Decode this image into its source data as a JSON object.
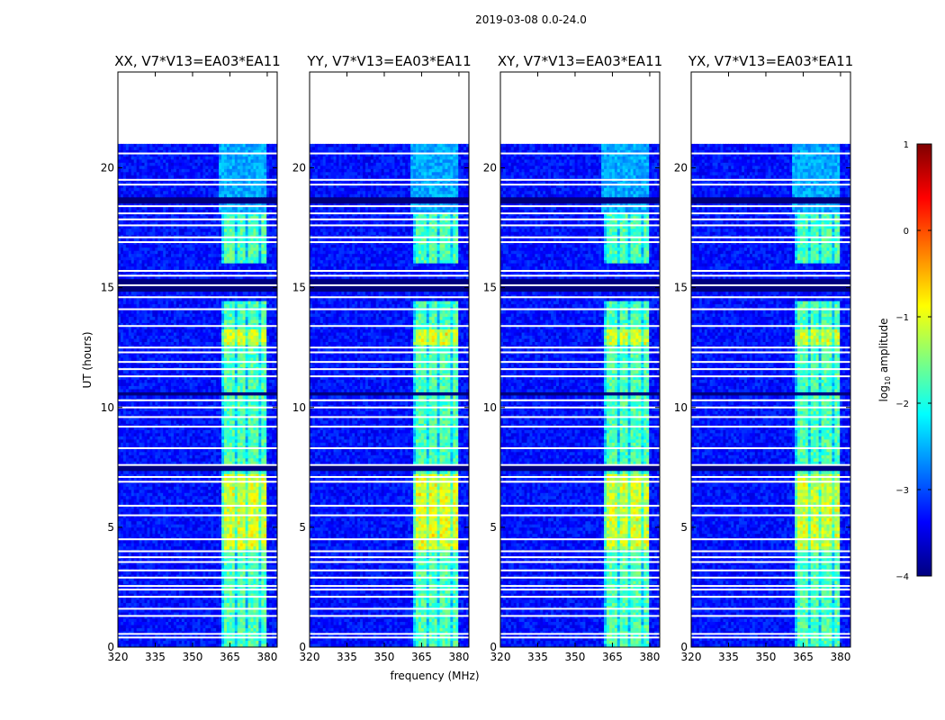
{
  "figure": {
    "suptitle": "2019-03-08 0.0-24.0",
    "xlabel": "frequency (MHz)",
    "ylabel": "UT (hours)"
  },
  "colorbar": {
    "label_prefix": "log",
    "label_sub": "10",
    "label_suffix": " amplitude",
    "ticks": [
      "1",
      "0",
      "−1",
      "−2",
      "−3",
      "−4"
    ],
    "range": [
      -4,
      1
    ],
    "colors": [
      "#00007f",
      "#0000ff",
      "#007fff",
      "#00ffff",
      "#7fff7f",
      "#ffff00",
      "#ff7f00",
      "#ff0000",
      "#7f0000"
    ]
  },
  "chart_data": {
    "type": "heatmap",
    "x_ticks": [
      "320",
      "335",
      "350",
      "365",
      "380"
    ],
    "x_tick_values": [
      320,
      335,
      350,
      365,
      380
    ],
    "y_ticks": [
      "0",
      "5",
      "10",
      "15",
      "20"
    ],
    "y_tick_values": [
      0,
      5,
      10,
      15,
      20
    ],
    "xlim": [
      320,
      384
    ],
    "ylim": [
      0,
      24
    ],
    "data_end_hour": 21,
    "rfi_band_mhz": [
      361,
      380
    ],
    "rfi_hot_hours": [
      [
        4.1,
        7.2
      ],
      [
        12.6,
        13.3
      ]
    ],
    "flagged_hours": [
      0.4,
      0.55,
      1.3,
      1.6,
      2.1,
      2.4,
      2.55,
      2.9,
      3.2,
      3.55,
      3.75,
      4.0,
      4.5,
      5.5,
      5.9,
      6.9,
      7.1,
      7.6,
      8.3,
      9.2,
      9.6,
      10.0,
      10.3,
      11.3,
      11.6,
      11.9,
      12.3,
      12.5,
      13.4,
      14.1,
      14.6,
      15.1,
      15.5,
      15.7,
      16.9,
      17.1,
      17.6,
      17.85,
      18.1,
      18.4,
      19.3,
      19.5,
      20.6
    ],
    "dark_hours": [
      [
        18.5,
        18.8
      ],
      [
        15.0,
        15.3
      ],
      [
        14.8,
        14.9
      ],
      [
        7.4,
        7.55
      ],
      [
        10.5,
        10.65
      ]
    ],
    "panels": [
      {
        "title": "XX, V7*V13=EA03*EA11",
        "intensity": 0.85
      },
      {
        "title": "YY, V7*V13=EA03*EA11",
        "intensity": 1.0
      },
      {
        "title": "XY, V7*V13=EA03*EA11",
        "intensity": 0.8
      },
      {
        "title": "YX, V7*V13=EA03*EA11",
        "intensity": 0.78
      }
    ]
  }
}
